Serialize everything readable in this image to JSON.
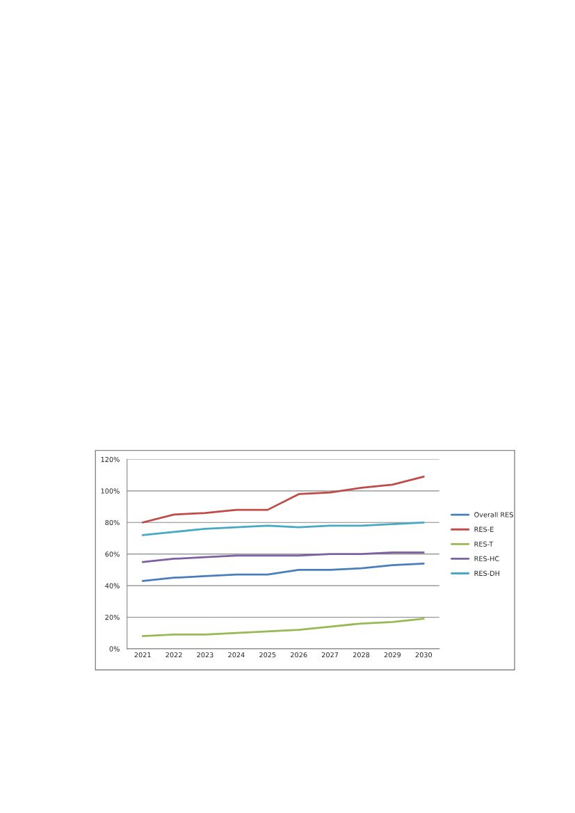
{
  "chart_data": {
    "type": "line",
    "categories": [
      "2021",
      "2022",
      "2023",
      "2024",
      "2025",
      "2026",
      "2027",
      "2028",
      "2029",
      "2030"
    ],
    "series": [
      {
        "name": "Overall RES",
        "color": "#4a7ebb",
        "values": [
          43,
          45,
          46,
          47,
          47,
          50,
          50,
          51,
          53,
          54
        ]
      },
      {
        "name": "RES-E",
        "color": "#be4b48",
        "values": [
          80,
          85,
          86,
          88,
          88,
          98,
          99,
          102,
          104,
          109
        ]
      },
      {
        "name": "RES-T",
        "color": "#98b954",
        "values": [
          8,
          9,
          9,
          10,
          11,
          12,
          14,
          16,
          17,
          19
        ]
      },
      {
        "name": "RES-HC",
        "color": "#7d60a0",
        "values": [
          55,
          57,
          58,
          59,
          59,
          59,
          60,
          60,
          61,
          61
        ]
      },
      {
        "name": "RES-DH",
        "color": "#46aac5",
        "values": [
          72,
          74,
          76,
          77,
          78,
          77,
          78,
          78,
          79,
          80
        ]
      }
    ],
    "ylim": [
      0,
      120
    ],
    "yticks": [
      {
        "value": 0,
        "label": "0%"
      },
      {
        "value": 20,
        "label": "20%"
      },
      {
        "value": 40,
        "label": "40%"
      },
      {
        "value": 60,
        "label": "60%"
      },
      {
        "value": 80,
        "label": "80%"
      },
      {
        "value": 100,
        "label": "100%"
      },
      {
        "value": 120,
        "label": "120%"
      }
    ],
    "grid": "y",
    "legend": "right",
    "marker": "none",
    "line_style": "solid"
  }
}
